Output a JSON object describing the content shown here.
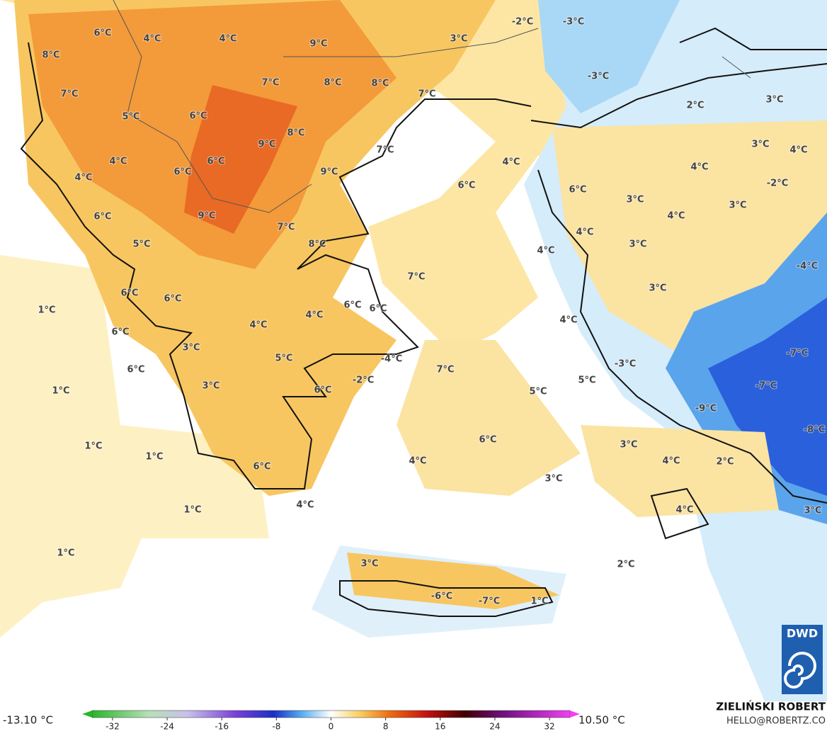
{
  "map": {
    "labels": [
      "6°C",
      "4°C",
      "4°C",
      "9°C",
      "3°C",
      "-2°C",
      "-3°C",
      "8°C",
      "7°C",
      "8°C",
      "8°C",
      "7°C",
      "-3°C",
      "2°C",
      "3°C",
      "7°C",
      "5°C",
      "6°C",
      "8°C",
      "9°C",
      "3°C",
      "4°C",
      "4°C",
      "6°C",
      "6°C",
      "9°C",
      "7°C",
      "4°C",
      "4°C",
      "-2°C",
      "4°C",
      "6°C",
      "6°C",
      "3°C",
      "3°C",
      "6°C",
      "9°C",
      "4°C",
      "7°C",
      "4°C",
      "5°C",
      "8°C",
      "4°C",
      "3°C",
      "-4°C",
      "7°C",
      "3°C",
      "6°C",
      "6°C",
      "1°C",
      "4°C",
      "6°C",
      "6°C",
      "4°C",
      "6°C",
      "4°C",
      "3°C",
      "5°C",
      "-4°C",
      "-7°C",
      "-3°C",
      "6°C",
      "7°C",
      "3°C",
      "-2°C",
      "6°C",
      "5°C",
      "5°C",
      "-7°C",
      "1°C",
      "-9°C",
      "-8°C",
      "6°C",
      "3°C",
      "1°C",
      "1°C",
      "4°C",
      "6°C",
      "4°C",
      "2°C",
      "3°C",
      "1°C",
      "4°C",
      "4°C",
      "3°C",
      "1°C",
      "3°C",
      "2°C",
      "-6°C",
      "-7°C",
      "1°C"
    ]
  },
  "colorbar": {
    "min_label": "-13.10 °C",
    "max_label": "10.50 °C",
    "range": [
      -35,
      35
    ],
    "ticks": [
      -32,
      -24,
      -16,
      -8,
      0,
      8,
      16,
      24,
      32
    ]
  },
  "footer": {
    "author": "ZIELIŃSKI ROBERT",
    "contact": "HELLO@ROBERTZ.CO",
    "logo": "DWD"
  }
}
